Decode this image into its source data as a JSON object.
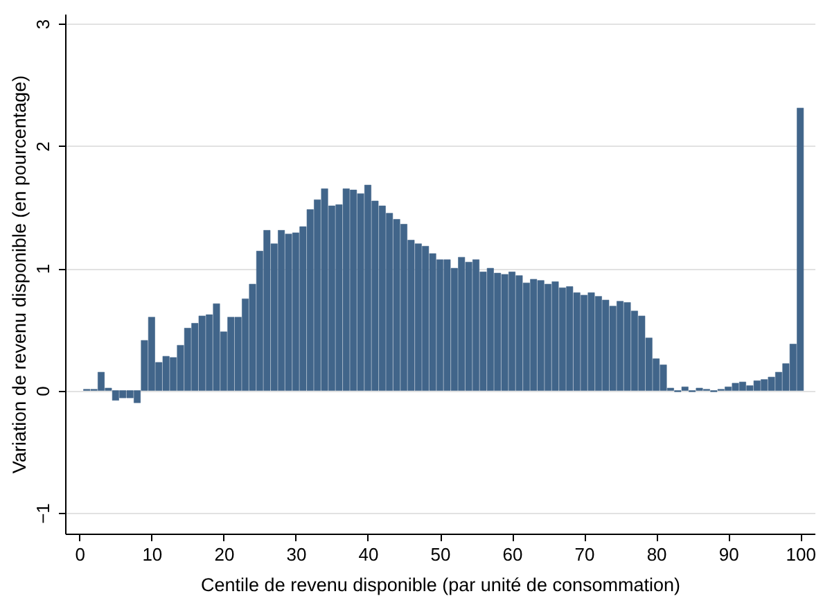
{
  "chart_data": {
    "type": "bar",
    "xlabel": "Centile de revenu disponible (par unité de consommation)",
    "ylabel": "Variation de revenu disponible (en pourcentage)",
    "x": [
      1,
      2,
      3,
      4,
      5,
      6,
      7,
      8,
      9,
      10,
      11,
      12,
      13,
      14,
      15,
      16,
      17,
      18,
      19,
      20,
      21,
      22,
      23,
      24,
      25,
      26,
      27,
      28,
      29,
      30,
      31,
      32,
      33,
      34,
      35,
      36,
      37,
      38,
      39,
      40,
      41,
      42,
      43,
      44,
      45,
      46,
      47,
      48,
      49,
      50,
      51,
      52,
      53,
      54,
      55,
      56,
      57,
      58,
      59,
      60,
      61,
      62,
      63,
      64,
      65,
      66,
      67,
      68,
      69,
      70,
      71,
      72,
      73,
      74,
      75,
      76,
      77,
      78,
      79,
      80,
      81,
      82,
      83,
      84,
      85,
      86,
      87,
      88,
      89,
      90,
      91,
      92,
      93,
      94,
      95,
      96,
      97,
      98,
      99,
      100
    ],
    "values": [
      0.01,
      0.01,
      0.15,
      0.02,
      -0.08,
      -0.06,
      -0.06,
      -0.1,
      0.41,
      0.6,
      0.23,
      0.28,
      0.27,
      0.37,
      0.51,
      0.55,
      0.61,
      0.62,
      0.71,
      0.48,
      0.6,
      0.6,
      0.75,
      0.87,
      1.14,
      1.31,
      1.2,
      1.31,
      1.28,
      1.29,
      1.34,
      1.48,
      1.56,
      1.65,
      1.51,
      1.52,
      1.65,
      1.64,
      1.61,
      1.68,
      1.55,
      1.51,
      1.45,
      1.4,
      1.36,
      1.23,
      1.2,
      1.18,
      1.12,
      1.07,
      1.07,
      1.0,
      1.09,
      1.05,
      1.07,
      0.97,
      1.0,
      0.96,
      0.95,
      0.97,
      0.94,
      0.88,
      0.91,
      0.9,
      0.87,
      0.89,
      0.84,
      0.85,
      0.8,
      0.78,
      0.8,
      0.77,
      0.74,
      0.69,
      0.73,
      0.72,
      0.65,
      0.61,
      0.43,
      0.26,
      0.21,
      0.02,
      -0.01,
      0.03,
      -0.01,
      0.02,
      0.01,
      -0.01,
      0.01,
      0.03,
      0.06,
      0.07,
      0.04,
      0.08,
      0.09,
      0.11,
      0.15,
      0.22,
      0.38,
      2.31
    ],
    "color": "#41658a",
    "xlim": [
      -2,
      102
    ],
    "xticks": [
      0,
      10,
      20,
      30,
      40,
      50,
      60,
      70,
      80,
      90,
      100
    ],
    "ylim": [
      -1.17,
      3.08
    ],
    "yticks": [
      -1,
      0,
      1,
      2,
      3
    ],
    "grid": "y"
  }
}
